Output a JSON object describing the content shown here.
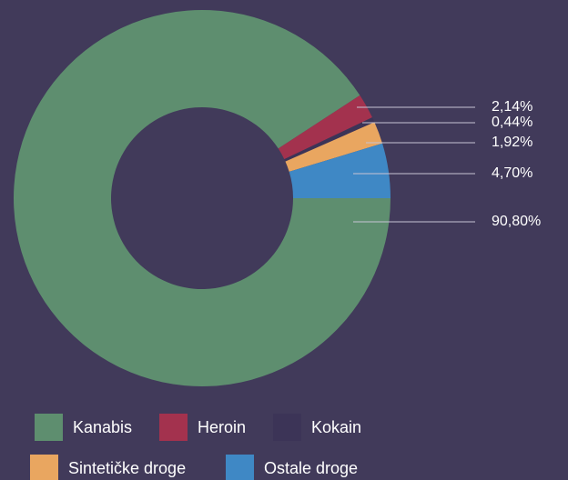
{
  "chart_data": {
    "type": "donut",
    "categories": [
      "Kanabis",
      "Heroin",
      "Kokain",
      "Sintetičke droge",
      "Ostale droge"
    ],
    "values": [
      90.8,
      2.14,
      0.44,
      1.92,
      4.7
    ],
    "value_labels": [
      "90,80%",
      "2,14%",
      "0,44%",
      "1,92%",
      "4,70%"
    ],
    "colors": [
      "#5e8e6f",
      "#a3324e",
      "#3c3457",
      "#e9a660",
      "#3f88c5"
    ]
  }
}
